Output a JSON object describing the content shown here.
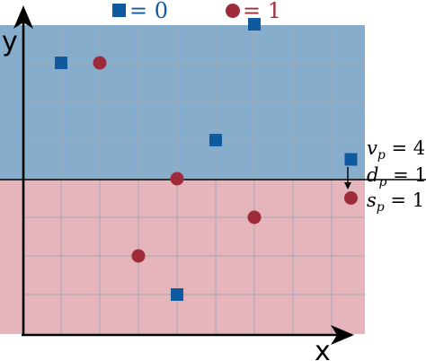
{
  "colors": {
    "class0": "#0f5a9e",
    "class1": "#9e2b3a",
    "region0": "#86adcb",
    "region1": "#e6b4bb",
    "grid": "#a0aaaf"
  },
  "axes": {
    "x_label": "x",
    "y_label": "y"
  },
  "legend": {
    "class0_label": "= 0",
    "class1_label": "= 1"
  },
  "annotation": {
    "v": {
      "sym": "v",
      "sub": "p",
      "rest": " = 4"
    },
    "d": {
      "sym": "d",
      "sub": "p",
      "rest": " = 1"
    },
    "s": {
      "sym": "s",
      "sub": "p",
      "rest": " = 1"
    }
  },
  "points": {
    "class0": [
      [
        1,
        7
      ],
      [
        6,
        8
      ],
      [
        5,
        5
      ],
      [
        8.5,
        4.5
      ],
      [
        4,
        1
      ]
    ],
    "class1": [
      [
        2,
        7
      ],
      [
        4,
        4
      ],
      [
        6,
        3
      ],
      [
        3,
        2
      ],
      [
        8.5,
        3.5
      ]
    ]
  },
  "boundary_y": 4
}
